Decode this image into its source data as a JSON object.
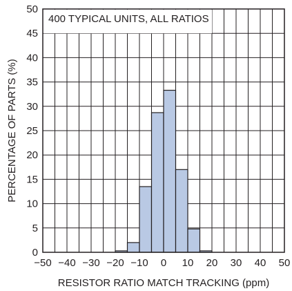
{
  "chart_data": {
    "type": "bar",
    "title": "",
    "annotation": "400 TYPICAL UNITS, ALL RATIOS",
    "xlabel": "RESISTOR RATIO MATCH TRACKING (ppm)",
    "ylabel": "PERCENTAGE OF PARTS (%)",
    "xlim": [
      -50,
      50
    ],
    "ylim": [
      0,
      50
    ],
    "xticks": [
      "−50",
      "−40",
      "−30",
      "−20",
      "−10",
      "0",
      "10",
      "20",
      "30",
      "40",
      "50"
    ],
    "yticks": [
      "0",
      "5",
      "10",
      "15",
      "20",
      "25",
      "30",
      "35",
      "40",
      "45",
      "50"
    ],
    "grid": true,
    "bin_width": 5,
    "bins": [
      {
        "start": -20,
        "end": -15,
        "value": 0.3
      },
      {
        "start": -15,
        "end": -10,
        "value": 2.0
      },
      {
        "start": -10,
        "end": -5,
        "value": 13.5
      },
      {
        "start": -5,
        "end": 0,
        "value": 28.7
      },
      {
        "start": 0,
        "end": 5,
        "value": 33.3
      },
      {
        "start": 5,
        "end": 10,
        "value": 17.0
      },
      {
        "start": 10,
        "end": 15,
        "value": 4.8
      },
      {
        "start": 15,
        "end": 20,
        "value": 0.3
      }
    ],
    "bar_color": "#b9c9e4",
    "line_color": "#231f20"
  }
}
